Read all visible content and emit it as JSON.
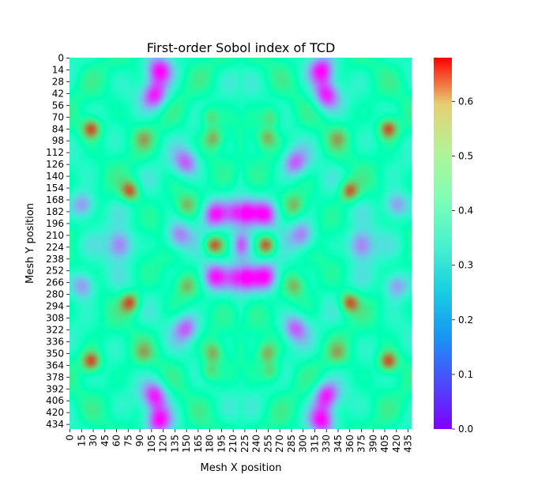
{
  "chart_data": {
    "type": "heatmap",
    "title": "First-order Sobol index of TCD",
    "xlabel": "Mesh X position",
    "ylabel": "Mesh Y position",
    "x_tick_labels": [
      "0",
      "15",
      "30",
      "45",
      "60",
      "75",
      "90",
      "105",
      "120",
      "135",
      "150",
      "165",
      "180",
      "195",
      "210",
      "225",
      "240",
      "255",
      "270",
      "285",
      "300",
      "315",
      "330",
      "345",
      "360",
      "375",
      "390",
      "405",
      "420",
      "435"
    ],
    "y_tick_labels": [
      "0",
      "14",
      "28",
      "42",
      "56",
      "70",
      "84",
      "98",
      "112",
      "126",
      "140",
      "154",
      "168",
      "182",
      "196",
      "210",
      "224",
      "238",
      "252",
      "266",
      "280",
      "294",
      "308",
      "322",
      "336",
      "350",
      "364",
      "378",
      "392",
      "406",
      "420",
      "434"
    ],
    "x_range": [
      0,
      440
    ],
    "y_range": [
      0,
      440
    ],
    "colorbar": {
      "colormap": "rainbow",
      "range": [
        0.0,
        0.68
      ],
      "tick_labels": [
        "0.0",
        "0.1",
        "0.2",
        "0.3",
        "0.4",
        "0.5",
        "0.6"
      ],
      "tick_values": [
        0.0,
        0.1,
        0.2,
        0.3,
        0.4,
        0.5,
        0.6
      ]
    },
    "symmetry": "mirror-symmetric about both the vertical and horizontal centre lines",
    "features": [
      {
        "label": "high",
        "x": 185,
        "y": 222,
        "value": 0.6
      },
      {
        "label": "high",
        "x": 254,
        "y": 222,
        "value": 0.6
      },
      {
        "label": "high",
        "x": 28,
        "y": 84,
        "value": 0.64
      },
      {
        "label": "high",
        "x": 410,
        "y": 84,
        "value": 0.64
      },
      {
        "label": "high",
        "x": 28,
        "y": 360,
        "value": 0.64
      },
      {
        "label": "high",
        "x": 410,
        "y": 360,
        "value": 0.64
      },
      {
        "label": "high",
        "x": 78,
        "y": 158,
        "value": 0.62
      },
      {
        "label": "high",
        "x": 360,
        "y": 158,
        "value": 0.62
      },
      {
        "label": "high",
        "x": 78,
        "y": 290,
        "value": 0.62
      },
      {
        "label": "high",
        "x": 360,
        "y": 290,
        "value": 0.62
      },
      {
        "label": "high",
        "x": 185,
        "y": 95,
        "value": 0.52
      },
      {
        "label": "high",
        "x": 254,
        "y": 95,
        "value": 0.52
      },
      {
        "label": "high",
        "x": 185,
        "y": 350,
        "value": 0.52
      },
      {
        "label": "high",
        "x": 254,
        "y": 350,
        "value": 0.52
      },
      {
        "label": "high",
        "x": 260,
        "y": 70,
        "value": 0.5
      },
      {
        "label": "high",
        "x": 180,
        "y": 70,
        "value": 0.5
      },
      {
        "label": "high",
        "x": 260,
        "y": 372,
        "value": 0.5
      },
      {
        "label": "high",
        "x": 180,
        "y": 372,
        "value": 0.5
      },
      {
        "label": "high",
        "x": 150,
        "y": 270,
        "value": 0.47
      },
      {
        "label": "high",
        "x": 290,
        "y": 270,
        "value": 0.47
      },
      {
        "label": "high",
        "x": 150,
        "y": 175,
        "value": 0.47
      },
      {
        "label": "high",
        "x": 290,
        "y": 175,
        "value": 0.47
      },
      {
        "label": "high",
        "x": 95,
        "y": 95,
        "value": 0.45
      },
      {
        "label": "high",
        "x": 345,
        "y": 95,
        "value": 0.45
      },
      {
        "label": "high",
        "x": 95,
        "y": 350,
        "value": 0.45
      },
      {
        "label": "high",
        "x": 345,
        "y": 350,
        "value": 0.45
      },
      {
        "label": "low",
        "x": 222,
        "y": 222,
        "value": 0.03
      },
      {
        "label": "low",
        "x": 222,
        "y": 185,
        "value": 0.04
      },
      {
        "label": "low",
        "x": 222,
        "y": 260,
        "value": 0.04
      },
      {
        "label": "low",
        "x": 185,
        "y": 185,
        "value": 0.06
      },
      {
        "label": "low",
        "x": 254,
        "y": 185,
        "value": 0.06
      },
      {
        "label": "low",
        "x": 185,
        "y": 260,
        "value": 0.06
      },
      {
        "label": "low",
        "x": 254,
        "y": 260,
        "value": 0.06
      },
      {
        "label": "low",
        "x": 110,
        "y": 45,
        "value": 0.04
      },
      {
        "label": "low",
        "x": 330,
        "y": 45,
        "value": 0.04
      },
      {
        "label": "low",
        "x": 110,
        "y": 400,
        "value": 0.04
      },
      {
        "label": "low",
        "x": 330,
        "y": 400,
        "value": 0.04
      },
      {
        "label": "low",
        "x": 115,
        "y": 15,
        "value": 0.05
      },
      {
        "label": "low",
        "x": 325,
        "y": 15,
        "value": 0.05
      },
      {
        "label": "low",
        "x": 115,
        "y": 430,
        "value": 0.05
      },
      {
        "label": "low",
        "x": 325,
        "y": 430,
        "value": 0.05
      },
      {
        "label": "low",
        "x": 65,
        "y": 222,
        "value": 0.06
      },
      {
        "label": "low",
        "x": 375,
        "y": 222,
        "value": 0.06
      },
      {
        "label": "low",
        "x": 420,
        "y": 175,
        "value": 0.08
      },
      {
        "label": "low",
        "x": 18,
        "y": 175,
        "value": 0.08
      },
      {
        "label": "low",
        "x": 420,
        "y": 270,
        "value": 0.08
      },
      {
        "label": "low",
        "x": 18,
        "y": 270,
        "value": 0.08
      },
      {
        "label": "low",
        "x": 140,
        "y": 210,
        "value": 0.1
      },
      {
        "label": "low",
        "x": 300,
        "y": 210,
        "value": 0.1
      },
      {
        "label": "low",
        "x": 150,
        "y": 125,
        "value": 0.1
      },
      {
        "label": "low",
        "x": 290,
        "y": 125,
        "value": 0.1
      },
      {
        "label": "low",
        "x": 150,
        "y": 320,
        "value": 0.1
      },
      {
        "label": "low",
        "x": 290,
        "y": 320,
        "value": 0.1
      }
    ],
    "grid": false,
    "legend": "colorbar-right"
  },
  "colors": {
    "background": "#ffffff",
    "axis": "#000000"
  }
}
